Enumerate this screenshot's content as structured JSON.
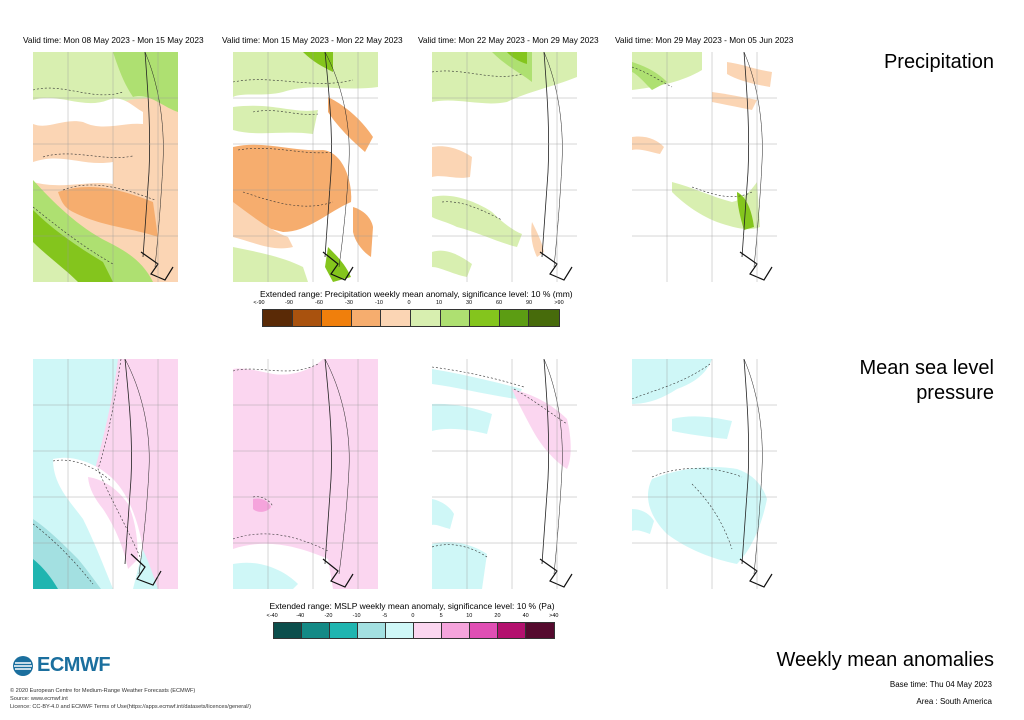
{
  "valid_times": [
    "Valid time: Mon 08 May 2023 - Mon 15 May 2023",
    "Valid time: Mon 15 May 2023 - Mon 22 May 2023",
    "Valid time: Mon 22 May 2023 - Mon 29 May 2023",
    "Valid time: Mon 29 May 2023 - Mon 05 Jun 2023"
  ],
  "sections": {
    "precipitation": "Precipitation",
    "mslp_line1": "Mean sea level",
    "mslp_line2": "pressure"
  },
  "precip_colorbar": {
    "title": "Extended range: Precipitation weekly mean anomaly, significance level: 10 % (mm)",
    "labels": [
      "<-90",
      "-90",
      "-60",
      "-30",
      "-10",
      "0",
      "10",
      "30",
      "60",
      "90",
      ">90"
    ],
    "colors": [
      "#5a2a06",
      "#a9520e",
      "#f07f0c",
      "#f6ad6e",
      "#fbd5b4",
      "#d8efb0",
      "#aee071",
      "#84c51d",
      "#5c9d13",
      "#476b0b"
    ]
  },
  "mslp_colorbar": {
    "title": "Extended range: MSLP weekly mean anomaly, significance level: 10 % (Pa)",
    "labels": [
      "<-40",
      "-40",
      "-20",
      "-10",
      "-5",
      "0",
      "5",
      "10",
      "20",
      "40",
      ">40"
    ],
    "colors": [
      "#0b4e4c",
      "#148a86",
      "#1fb5b0",
      "#a3e0e1",
      "#cff7f7",
      "#fbd6f0",
      "#f5a4dc",
      "#e04fb4",
      "#b3106e",
      "#550a2e"
    ]
  },
  "footer": {
    "title": "Weekly mean anomalies",
    "base_time": "Base time: Thu 04 May 2023",
    "area": "Area : South America",
    "logo": "ECMWF",
    "copyright": "© 2020 European Centre for Medium-Range Weather Forecasts (ECMWF)",
    "source": "Source: www.ecmwf.int",
    "licence": "Licence: CC-BY-4.0 and ECMWF Terms of Use(https://apps.ecmwf.int/datasets/licences/general/)"
  },
  "colors": {
    "pale_orange": "#fbd5b4",
    "light_orange": "#f6ad6e",
    "light_green": "#d8efb0",
    "mid_green": "#aee071",
    "dark_green": "#84c51d",
    "pale_cyan": "#cff7f7",
    "pale_pink": "#fbd6f0",
    "pink": "#f5a4dc",
    "mid_cyan": "#a3e0e1"
  }
}
